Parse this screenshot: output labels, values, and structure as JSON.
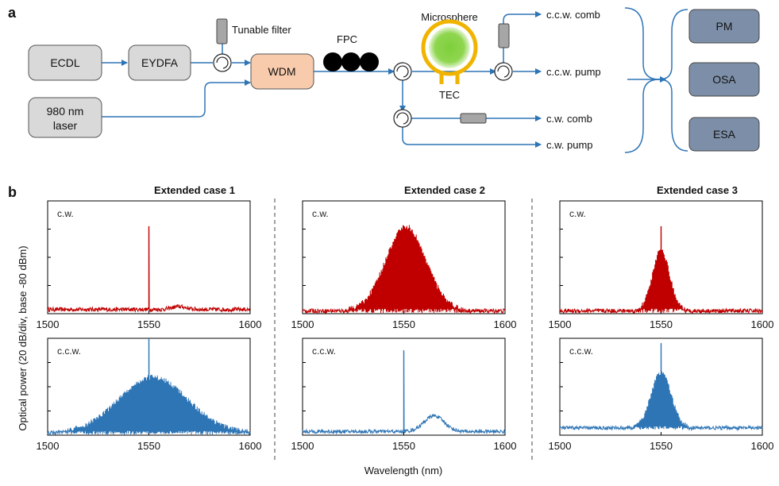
{
  "panel_a": {
    "letter": "a",
    "ecdl": "ECDL",
    "eydfa": "EYDFA",
    "laser980_line1": "980 nm",
    "laser980_line2": "laser",
    "tunable_filter": "Tunable filter",
    "wdm": "WDM",
    "fpc": "FPC",
    "microsphere": "Microsphere",
    "tec": "TEC",
    "ccw_comb": "c.c.w. comb",
    "ccw_pump": "c.c.w. pump",
    "cw_comb": "c.w. comb",
    "cw_pump": "c.w. pump",
    "pm": "PM",
    "osa": "OSA",
    "esa": "ESA",
    "colors": {
      "box_gray": "#d9d9d9",
      "wdm": "#f8cbad",
      "instrument": "#7d8fa8",
      "fiber": "#2e75b6",
      "microsphere": "#7ecf3c",
      "ring": "#f0b400"
    }
  },
  "panel_b": {
    "letter": "b",
    "ylabel": "Optical power (20 dB/div, base -80 dBm)",
    "xlabel": "Wavelength (nm)",
    "cw_label": "c.w.",
    "ccw_label": "c.c.w.",
    "cases": [
      "Extended case 1",
      "Extended case 2",
      "Extended case 3"
    ],
    "colors": {
      "cw": "#c00000",
      "ccw": "#2e75b6"
    }
  },
  "chart_data": [
    {
      "type": "line",
      "title": "Extended case 1",
      "subplot": "c.w.",
      "xlim": [
        1500,
        1600
      ],
      "x_ticks": [
        1500,
        1550,
        1600
      ],
      "features": {
        "floor_dbm": -77,
        "pump_peak": {
          "x": 1550,
          "y": -18
        },
        "hump": {
          "center": 1565,
          "width": 5,
          "height": 2
        }
      }
    },
    {
      "type": "line",
      "title": "Extended case 1",
      "subplot": "c.c.w.",
      "xlim": [
        1500,
        1600
      ],
      "x_ticks": [
        1500,
        1550,
        1600
      ],
      "features": {
        "floor_dbm": -78,
        "comb_envelope": {
          "center": 1552,
          "width": 24,
          "peak": -32
        },
        "pump_peak": {
          "x": 1550,
          "y": 0
        }
      }
    },
    {
      "type": "line",
      "title": "Extended case 2",
      "subplot": "c.w.",
      "xlim": [
        1500,
        1600
      ],
      "x_ticks": [
        1500,
        1550,
        1600
      ],
      "features": {
        "floor_dbm": -78,
        "comb_envelope": {
          "center": 1551,
          "width": 14,
          "peak": -18
        }
      }
    },
    {
      "type": "line",
      "title": "Extended case 2",
      "subplot": "c.c.w.",
      "xlim": [
        1500,
        1600
      ],
      "x_ticks": [
        1500,
        1550,
        1600
      ],
      "features": {
        "floor_dbm": -77,
        "pump_peak": {
          "x": 1550,
          "y": -10
        },
        "hump": {
          "center": 1565,
          "width": 7,
          "height": 13
        }
      }
    },
    {
      "type": "line",
      "title": "Extended case 3",
      "subplot": "c.w.",
      "xlim": [
        1500,
        1600
      ],
      "x_ticks": [
        1500,
        1550,
        1600
      ],
      "features": {
        "floor_dbm": -78,
        "comb_envelope": {
          "center": 1550,
          "width": 6,
          "peak": -35
        },
        "pump_peak": {
          "x": 1550,
          "y": -18
        }
      }
    },
    {
      "type": "line",
      "title": "Extended case 3",
      "subplot": "c.c.w.",
      "xlim": [
        1500,
        1600
      ],
      "x_ticks": [
        1500,
        1550,
        1600
      ],
      "features": {
        "floor_dbm": -74,
        "comb_envelope": {
          "center": 1550,
          "width": 7,
          "peak": -28
        },
        "pump_peak": {
          "x": 1550,
          "y": -4
        }
      }
    }
  ]
}
